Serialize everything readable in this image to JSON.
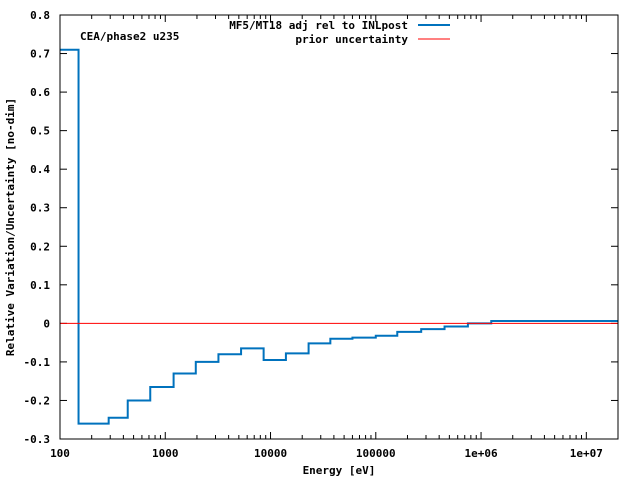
{
  "chart_data": {
    "type": "line",
    "title": "",
    "annotation": "CEA/phase2 u235",
    "xlabel": "Energy [eV]",
    "ylabel": "Relative Variation/Uncertainty [no-dim]",
    "x_scale": "log",
    "xlim": [
      100,
      20000000
    ],
    "ylim": [
      -0.3,
      0.8
    ],
    "y_ticks": [
      -0.3,
      -0.2,
      -0.1,
      0,
      0.1,
      0.2,
      0.3,
      0.4,
      0.5,
      0.6,
      0.7,
      0.8
    ],
    "y_tick_labels": [
      "-0.3",
      "-0.2",
      "-0.1",
      "0",
      "0.1",
      "0.2",
      "0.3",
      "0.4",
      "0.5",
      "0.6",
      "0.7",
      "0.8"
    ],
    "x_ticks": [
      100,
      1000,
      10000,
      100000,
      1000000,
      10000000
    ],
    "x_tick_labels": [
      "100",
      "1000",
      "10000",
      "100000",
      "1e+06",
      "1e+07"
    ],
    "legend_position": "top-right",
    "series": [
      {
        "name": "MF5/MT18 adj rel to INLpost",
        "color": "#0072bd",
        "style": "step",
        "bin_edges": [
          100,
          150,
          290,
          440,
          720,
          1200,
          1950,
          3200,
          5250,
          8600,
          14000,
          23000,
          37000,
          60000,
          100000,
          160000,
          270000,
          450000,
          750000,
          1250000,
          20000000
        ],
        "values": [
          0.71,
          -0.26,
          -0.245,
          -0.2,
          -0.165,
          -0.13,
          -0.1,
          -0.08,
          -0.065,
          -0.095,
          -0.078,
          -0.052,
          -0.04,
          -0.037,
          -0.032,
          -0.022,
          -0.015,
          -0.008,
          0.0,
          0.006
        ]
      },
      {
        "name": "prior uncertainty",
        "color": "#ff0000",
        "style": "line",
        "x": [
          100,
          20000000
        ],
        "values": [
          0,
          0
        ]
      }
    ]
  }
}
